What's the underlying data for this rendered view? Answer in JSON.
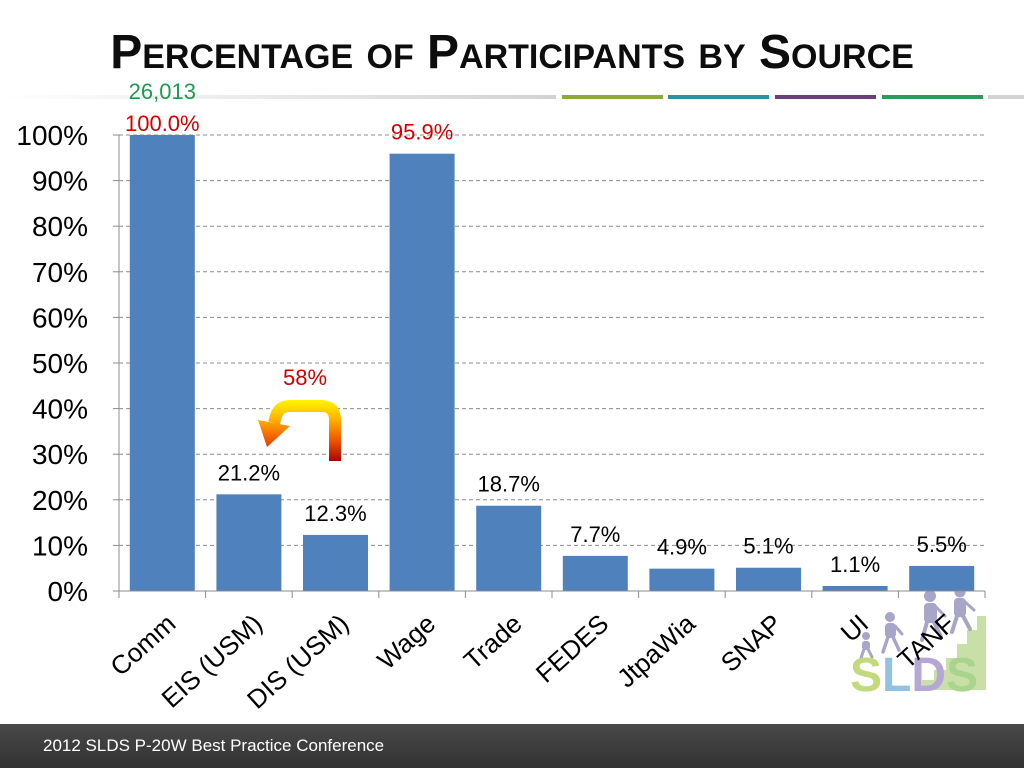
{
  "slide": {
    "footer": "2012 SLDS P-20W Best Practice Conference",
    "logo_text": "SLDS"
  },
  "colors": {
    "bar": "#4f81bd",
    "gridline": "#8c8c8c",
    "divider_segments": [
      "#8ea83c",
      "#2f8ea8",
      "#6b3f7f",
      "#2b9a5c",
      "#d3d3d3"
    ],
    "logo_letters": [
      "#c2da7a",
      "#93c1e4",
      "#b6a6d6",
      "#a9d48e"
    ],
    "footer_bg": "#3a3a3a"
  },
  "chart_data": {
    "type": "bar",
    "title": "Percentage of Participants by Source",
    "categories": [
      "Comm",
      "EIS (USM)",
      "DIS (USM)",
      "Wage",
      "Trade",
      "FEDES",
      "JtpaWia",
      "SNAP",
      "UI",
      "TANF"
    ],
    "values": [
      100.0,
      21.2,
      12.3,
      95.9,
      18.7,
      7.7,
      4.9,
      5.1,
      1.1,
      5.5
    ],
    "data_labels": [
      "100.0%",
      "21.2%",
      "12.3%",
      "95.9%",
      "18.7%",
      "7.7%",
      "4.9%",
      "5.1%",
      "1.1%",
      "5.5%"
    ],
    "data_label_colors": [
      "#d40000",
      "#000000",
      "#000000",
      "#d40000",
      "#000000",
      "#000000",
      "#000000",
      "#000000",
      "#000000",
      "#000000"
    ],
    "y_ticks": [
      "0%",
      "10%",
      "20%",
      "30%",
      "40%",
      "50%",
      "60%",
      "70%",
      "80%",
      "90%",
      "100%"
    ],
    "ylim": [
      0,
      100
    ],
    "xlabel": "",
    "ylabel": "",
    "grid": true,
    "legend": false,
    "annotations": [
      {
        "text": "26,013",
        "category": "Comm",
        "color": "#1e9a50"
      },
      {
        "text": "58%",
        "color": "#d40000",
        "icon": "u-turn-arrow-icon"
      }
    ]
  }
}
